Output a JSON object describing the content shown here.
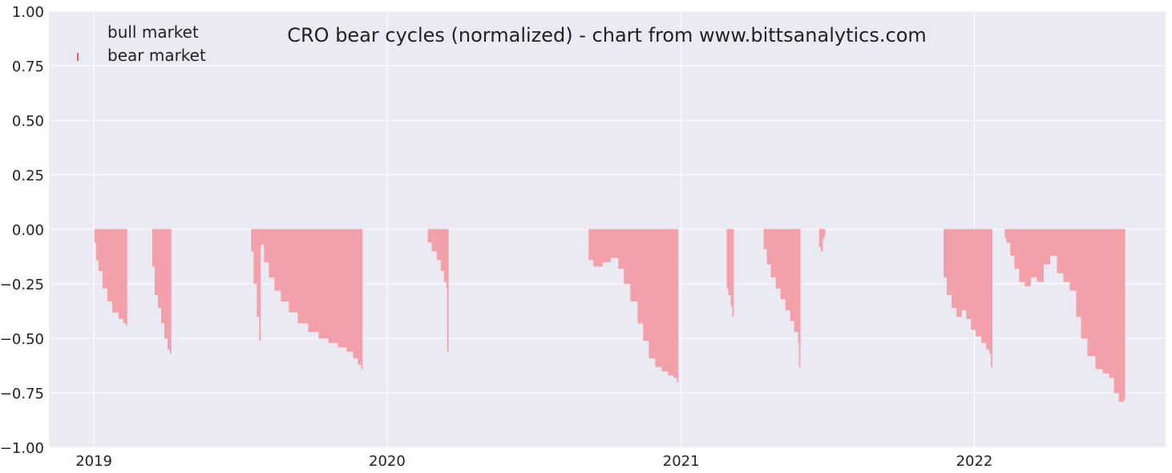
{
  "chart_data": {
    "type": "area",
    "title": "CRO bear cycles (normalized)  - chart from www.bittsanalytics.com",
    "xlabel": "",
    "ylabel": "",
    "xlim": [
      "2018-11-06",
      "2022-08-27"
    ],
    "ylim": [
      -1.0,
      1.0
    ],
    "yticks": [
      "1.00",
      "0.75",
      "0.50",
      "0.25",
      "0.00",
      "−0.25",
      "−0.50",
      "−0.75",
      "−1.00"
    ],
    "ytick_values": [
      1.0,
      0.75,
      0.5,
      0.25,
      0.0,
      -0.25,
      -0.5,
      -0.75,
      -1.0
    ],
    "xticks": [
      "2019",
      "2020",
      "2021",
      "2022"
    ],
    "xtick_values": [
      "2019-01-01",
      "2020-01-01",
      "2021-01-01",
      "2022-01-01"
    ],
    "grid": true,
    "legend_position": "top-left",
    "colors": {
      "background": "#eaeaf2",
      "grid": "#ffffff",
      "bear": "#f4a0ab",
      "bear_edge": "#ee7f8f",
      "legend_marker": "#e8545f"
    },
    "series": [
      {
        "name": "bull market",
        "kind": "bull",
        "values": []
      },
      {
        "name": "bear market",
        "kind": "bear",
        "episodes": [
          {
            "x": [
              "2019-01-02",
              "2019-01-04",
              "2019-01-07",
              "2019-01-12",
              "2019-01-18",
              "2019-01-24",
              "2019-02-01",
              "2019-02-07",
              "2019-02-10"
            ],
            "y": [
              -0.06,
              -0.14,
              -0.19,
              -0.27,
              -0.33,
              -0.38,
              -0.41,
              -0.43,
              -0.44
            ]
          },
          {
            "x": [
              "2019-03-15",
              "2019-03-18",
              "2019-03-22",
              "2019-03-26",
              "2019-03-30",
              "2019-04-03",
              "2019-04-06"
            ],
            "y": [
              -0.17,
              -0.3,
              -0.36,
              -0.43,
              -0.5,
              -0.55,
              -0.57
            ]
          },
          {
            "x": [
              "2019-07-16",
              "2019-07-19",
              "2019-07-23",
              "2019-07-26"
            ],
            "y": [
              -0.1,
              -0.25,
              -0.4,
              -0.51
            ]
          },
          {
            "x": [
              "2019-07-27",
              "2019-08-01",
              "2019-08-07",
              "2019-08-14",
              "2019-08-22",
              "2019-09-01",
              "2019-09-12",
              "2019-09-25",
              "2019-10-08",
              "2019-10-20",
              "2019-11-01",
              "2019-11-12",
              "2019-11-20",
              "2019-11-26",
              "2019-11-30"
            ],
            "y": [
              -0.07,
              -0.15,
              -0.22,
              -0.28,
              -0.33,
              -0.38,
              -0.43,
              -0.47,
              -0.5,
              -0.52,
              -0.54,
              -0.56,
              -0.59,
              -0.62,
              -0.64
            ]
          },
          {
            "x": [
              "2020-02-21",
              "2020-02-26",
              "2020-03-03",
              "2020-03-08",
              "2020-03-12",
              "2020-03-15",
              "2020-03-16"
            ],
            "y": [
              -0.06,
              -0.1,
              -0.14,
              -0.19,
              -0.24,
              -0.27,
              -0.56
            ]
          },
          {
            "x": [
              "2020-09-08",
              "2020-09-14",
              "2020-09-25",
              "2020-10-05",
              "2020-10-15",
              "2020-10-22",
              "2020-10-30",
              "2020-11-08",
              "2020-11-15",
              "2020-11-22",
              "2020-11-30",
              "2020-12-08",
              "2020-12-16",
              "2020-12-23",
              "2020-12-27"
            ],
            "y": [
              -0.14,
              -0.17,
              -0.15,
              -0.13,
              -0.18,
              -0.25,
              -0.33,
              -0.43,
              -0.51,
              -0.59,
              -0.63,
              -0.65,
              -0.67,
              -0.68,
              -0.7
            ]
          },
          {
            "x": [
              "2021-02-27",
              "2021-03-01",
              "2021-03-04",
              "2021-03-06"
            ],
            "y": [
              -0.27,
              -0.3,
              -0.35,
              -0.4
            ]
          },
          {
            "x": [
              "2021-04-14",
              "2021-04-18",
              "2021-04-23",
              "2021-04-29",
              "2021-05-05",
              "2021-05-11",
              "2021-05-17",
              "2021-05-22",
              "2021-05-27",
              "2021-05-28"
            ],
            "y": [
              -0.09,
              -0.16,
              -0.22,
              -0.27,
              -0.32,
              -0.37,
              -0.42,
              -0.47,
              -0.52,
              -0.63
            ]
          },
          {
            "x": [
              "2021-06-22",
              "2021-06-24",
              "2021-06-26",
              "2021-06-28"
            ],
            "y": [
              -0.08,
              -0.1,
              -0.04,
              -0.03
            ]
          },
          {
            "x": [
              "2021-11-24",
              "2021-11-28",
              "2021-12-04",
              "2021-12-10",
              "2021-12-16",
              "2021-12-22",
              "2021-12-28",
              "2022-01-03",
              "2022-01-10",
              "2022-01-16",
              "2022-01-20",
              "2022-01-22"
            ],
            "y": [
              -0.22,
              -0.3,
              -0.36,
              -0.4,
              -0.37,
              -0.41,
              -0.46,
              -0.49,
              -0.52,
              -0.55,
              -0.57,
              -0.63
            ]
          },
          {
            "x": [
              "2022-02-08",
              "2022-02-10",
              "2022-02-15",
              "2022-02-20",
              "2022-02-26",
              "2022-03-05",
              "2022-03-12",
              "2022-03-20",
              "2022-03-28",
              "2022-04-05",
              "2022-04-14",
              "2022-04-22",
              "2022-04-30",
              "2022-05-08",
              "2022-05-14",
              "2022-05-22",
              "2022-06-01",
              "2022-06-10",
              "2022-06-18",
              "2022-06-24",
              "2022-06-30",
              "2022-07-06"
            ],
            "y": [
              -0.04,
              -0.06,
              -0.12,
              -0.18,
              -0.24,
              -0.26,
              -0.22,
              -0.24,
              -0.16,
              -0.12,
              -0.2,
              -0.24,
              -0.28,
              -0.4,
              -0.5,
              -0.58,
              -0.64,
              -0.66,
              -0.68,
              -0.75,
              -0.79,
              -0.78
            ]
          }
        ]
      }
    ]
  }
}
